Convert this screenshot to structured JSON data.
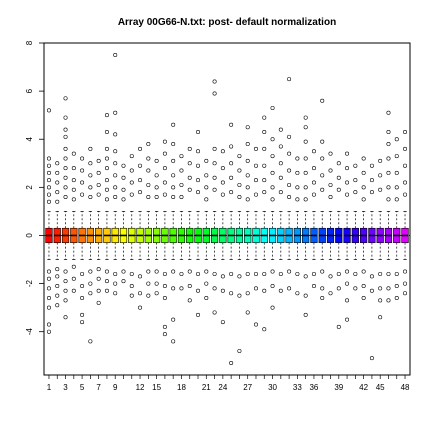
{
  "chart_data": {
    "type": "boxplot",
    "title": "Array 00G66-N.txt: post- default normalization",
    "xlabel": "",
    "ylabel": "",
    "ylim": [
      -5.8,
      8.0
    ],
    "xlim": [
      0.4,
      44.6
    ],
    "y_ticks": [
      -4,
      -2,
      0,
      2,
      4,
      6,
      8
    ],
    "x_tick_positions": [
      1,
      2,
      3,
      4,
      5,
      6,
      7,
      8,
      9,
      10,
      11,
      12,
      13,
      14,
      15,
      16,
      17,
      18,
      19,
      20,
      21,
      22,
      23,
      24,
      25,
      26,
      27,
      28,
      29,
      30,
      31,
      32,
      33,
      34,
      35,
      36,
      37,
      38,
      39,
      40,
      41,
      42,
      43,
      44
    ],
    "x_tick_labels": [
      "1",
      "3",
      "5",
      "7",
      "9",
      "12",
      "15",
      "18",
      "21",
      "24",
      "27",
      "30",
      "33",
      "36",
      "39",
      "42",
      "45",
      "48"
    ],
    "x_labeled_positions": [
      1,
      3,
      5,
      7,
      9,
      12,
      15,
      18,
      21,
      24,
      27,
      30,
      33,
      36,
      39,
      42,
      45,
      48
    ],
    "reference_line_y": 0,
    "grid": false,
    "boxes": {
      "count": 44,
      "q1": -0.3,
      "q3": 0.3,
      "median": 0.0,
      "whisker_low": -1.0,
      "whisker_high": 1.0,
      "color_scheme": "rainbow"
    },
    "outliers": [
      {
        "x": 1,
        "y": [
          5.2,
          3.2,
          2.9,
          2.6,
          2.3,
          2.0,
          1.7,
          1.4,
          -1.5,
          -1.8,
          -2.2,
          -2.6,
          -3.0,
          -4.0,
          -3.7
        ]
      },
      {
        "x": 2,
        "y": [
          3.0,
          2.6,
          2.2,
          1.8,
          1.4,
          -1.4,
          -1.7,
          -2.1,
          -2.5,
          -2.9
        ]
      },
      {
        "x": 3,
        "y": [
          5.7,
          4.9,
          4.4,
          4.1,
          3.6,
          3.2,
          2.8,
          2.4,
          2.0,
          1.6,
          -1.5,
          -1.9,
          -2.3,
          -2.7,
          -3.4
        ]
      },
      {
        "x": 4,
        "y": [
          3.4,
          2.8,
          2.3,
          1.9,
          1.5,
          -1.3,
          -1.8,
          -2.3
        ]
      },
      {
        "x": 5,
        "y": [
          3.2,
          2.7,
          2.2,
          1.7,
          -1.6,
          -2.1,
          -2.6,
          -3.3,
          -3.6
        ]
      },
      {
        "x": 6,
        "y": [
          3.6,
          3.0,
          2.5,
          2.0,
          1.6,
          -1.5,
          -2.0,
          -2.4,
          -4.4
        ]
      },
      {
        "x": 7,
        "y": [
          3.1,
          2.6,
          2.1,
          1.7,
          -1.4,
          -1.8,
          -2.3,
          -2.8
        ]
      },
      {
        "x": 8,
        "y": [
          5.0,
          4.3,
          3.6,
          3.2,
          2.8,
          2.3,
          1.9,
          1.5,
          -1.5,
          -1.9,
          -2.3
        ]
      },
      {
        "x": 9,
        "y": [
          7.5,
          5.1,
          4.2,
          3.5,
          3.0,
          2.5,
          2.0,
          1.6,
          -1.6,
          -2.0,
          -2.4
        ]
      },
      {
        "x": 10,
        "y": [
          2.9,
          2.4,
          1.9,
          1.5,
          -1.5,
          -1.9
        ]
      },
      {
        "x": 11,
        "y": [
          3.3,
          2.7,
          2.2,
          1.7,
          -1.6,
          -2.1,
          -2.5
        ]
      },
      {
        "x": 12,
        "y": [
          3.6,
          2.9,
          2.3,
          1.8,
          -1.7,
          -2.4,
          -3.0
        ]
      },
      {
        "x": 13,
        "y": [
          3.8,
          3.2,
          2.7,
          2.1,
          1.6,
          -1.5,
          -2.0,
          -2.5
        ]
      },
      {
        "x": 14,
        "y": [
          3.1,
          2.5,
          2.0,
          1.6,
          -1.5,
          -2.0,
          -2.4
        ]
      },
      {
        "x": 15,
        "y": [
          3.9,
          3.4,
          2.8,
          2.2,
          1.7,
          -1.6,
          -2.1,
          -2.6,
          -3.8,
          -4.1
        ]
      },
      {
        "x": 16,
        "y": [
          4.6,
          3.8,
          3.1,
          2.5,
          2.0,
          1.6,
          -1.5,
          -2.2,
          -3.5,
          -4.4
        ]
      },
      {
        "x": 17,
        "y": [
          3.3,
          2.7,
          2.1,
          1.6,
          -1.6,
          -2.2
        ]
      },
      {
        "x": 18,
        "y": [
          3.6,
          3.0,
          2.4,
          1.9,
          -1.5,
          -2.1,
          -2.7
        ]
      },
      {
        "x": 19,
        "y": [
          4.3,
          3.5,
          2.9,
          2.3,
          1.8,
          -1.6,
          -2.3,
          -3.3
        ]
      },
      {
        "x": 20,
        "y": [
          3.1,
          2.5,
          2.0,
          1.5,
          -1.5,
          -2.0,
          -2.6
        ]
      },
      {
        "x": 21,
        "y": [
          6.4,
          5.9,
          3.6,
          3.0,
          2.4,
          1.9,
          -1.6,
          -2.2,
          -3.2
        ]
      },
      {
        "x": 22,
        "y": [
          3.5,
          2.8,
          2.2,
          1.7,
          -1.7,
          -2.3,
          -3.6
        ]
      },
      {
        "x": 23,
        "y": [
          4.6,
          3.7,
          3.0,
          2.4,
          1.8,
          -1.6,
          -2.4,
          -5.3
        ]
      },
      {
        "x": 24,
        "y": [
          3.3,
          2.7,
          2.1,
          1.6,
          -1.7,
          -2.5,
          -4.8
        ]
      },
      {
        "x": 25,
        "y": [
          4.5,
          3.8,
          3.1,
          2.5,
          2.0,
          1.5,
          -1.6,
          -2.4,
          -3.2
        ]
      },
      {
        "x": 26,
        "y": [
          3.6,
          2.9,
          2.3,
          1.7,
          -1.6,
          -2.2,
          -3.7
        ]
      },
      {
        "x": 27,
        "y": [
          4.9,
          4.3,
          3.6,
          2.9,
          2.3,
          1.8,
          -1.6,
          -2.3,
          -3.9
        ]
      },
      {
        "x": 28,
        "y": [
          5.3,
          4.0,
          3.3,
          2.6,
          2.0,
          1.5,
          -1.5,
          -2.1,
          -3.0
        ]
      },
      {
        "x": 29,
        "y": [
          4.4,
          3.7,
          3.0,
          2.4,
          1.8,
          -1.6,
          -2.3
        ]
      },
      {
        "x": 30,
        "y": [
          6.5,
          4.1,
          3.4,
          2.7,
          2.1,
          1.6,
          -1.5,
          -2.2
        ]
      },
      {
        "x": 31,
        "y": [
          3.2,
          2.6,
          2.0,
          1.5,
          -1.6,
          -2.4
        ]
      },
      {
        "x": 32,
        "y": [
          4.9,
          4.5,
          3.9,
          3.2,
          2.6,
          2.0,
          1.5,
          -1.7,
          -2.5,
          -3.3
        ]
      },
      {
        "x": 33,
        "y": [
          3.5,
          2.8,
          2.2,
          1.7,
          -1.6,
          -2.1
        ]
      },
      {
        "x": 34,
        "y": [
          5.6,
          3.9,
          3.2,
          2.5,
          1.9,
          -1.5,
          -2.2,
          -2.6
        ]
      },
      {
        "x": 35,
        "y": [
          3.4,
          2.7,
          2.1,
          1.6,
          -1.7,
          -2.4
        ]
      },
      {
        "x": 36,
        "y": [
          3.0,
          2.4,
          1.9,
          -1.6,
          -2.2,
          -3.8
        ]
      },
      {
        "x": 37,
        "y": [
          3.4,
          2.8,
          2.2,
          1.7,
          -1.5,
          -2.0,
          -2.7,
          -3.5
        ]
      },
      {
        "x": 38,
        "y": [
          2.9,
          2.3,
          1.8,
          -1.6,
          -2.2
        ]
      },
      {
        "x": 39,
        "y": [
          3.2,
          2.6,
          2.0,
          1.5,
          -1.5,
          -2.1,
          -2.6
        ]
      },
      {
        "x": 40,
        "y": [
          2.9,
          2.3,
          1.8,
          -1.7,
          -2.3,
          -5.1
        ]
      },
      {
        "x": 41,
        "y": [
          3.1,
          2.5,
          1.9,
          -1.6,
          -2.2,
          -2.7,
          -3.4
        ]
      },
      {
        "x": 42,
        "y": [
          5.1,
          4.3,
          3.8,
          3.2,
          2.6,
          2.0,
          1.5,
          -1.6,
          -2.2,
          -2.7
        ]
      },
      {
        "x": 43,
        "y": [
          4.0,
          3.3,
          2.6,
          2.0,
          1.5,
          -1.6,
          -2.1,
          -2.6
        ]
      },
      {
        "x": 44,
        "y": [
          4.3,
          3.6,
          2.9,
          2.2,
          1.7,
          -1.5,
          -2.0,
          -2.4
        ]
      }
    ]
  }
}
